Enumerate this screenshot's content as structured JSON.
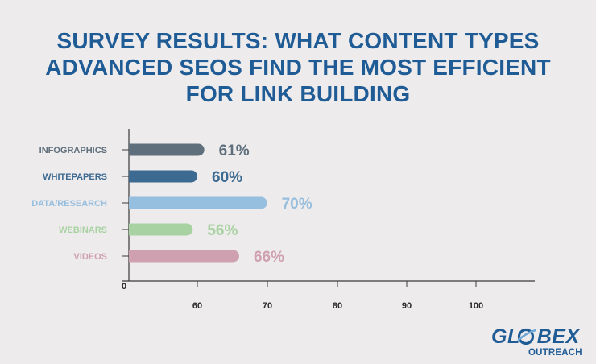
{
  "chart_data": {
    "type": "bar",
    "orientation": "horizontal",
    "title_lines": [
      "SURVEY RESULTS: WHAT CONTENT TYPES",
      "ADVANCED SEOS FIND THE MOST EFFICIENT",
      "FOR LINK BUILDING"
    ],
    "categories": [
      "INFOGRAPHICS",
      "WHITEPAPERS",
      "DATA/RESEARCH",
      "WEBINARS",
      "VIDEOS"
    ],
    "values": [
      61,
      60,
      70,
      56,
      66
    ],
    "value_labels": [
      "61%",
      "60%",
      "70%",
      "56%",
      "66%"
    ],
    "colors": [
      "#5f6f7c",
      "#3d6a91",
      "#96bede",
      "#a9d2a2",
      "#cfa1b0"
    ],
    "x_axis_ticks": [
      "0",
      "60",
      "70",
      "80",
      "90",
      "100"
    ],
    "x_axis_break": "axis jumps from 0 directly to 60 (broken scale)",
    "grid": false
  },
  "logo": {
    "word": "GLOBEX",
    "word_left": "GL",
    "word_right": "BEX",
    "sub": "OUTREACH",
    "colors": {
      "primary": "#1f5c96",
      "accent": "#6fa8d6"
    }
  }
}
